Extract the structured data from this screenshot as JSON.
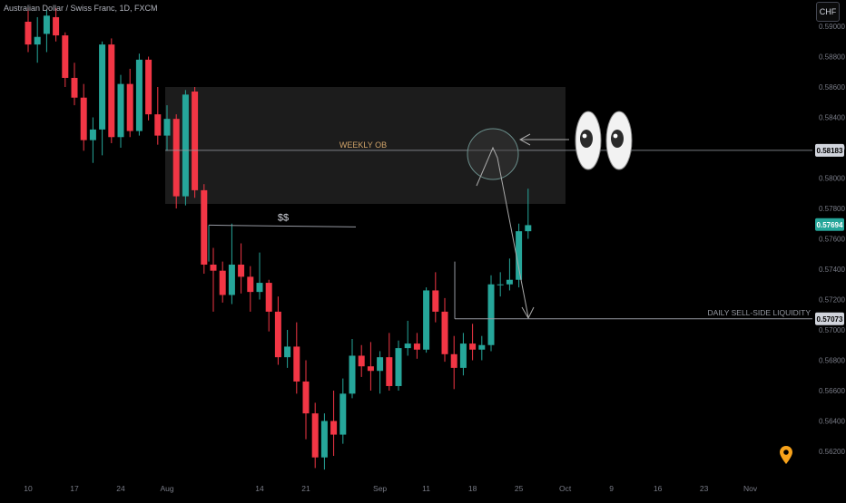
{
  "header": {
    "symbol_title": "Australian Dollar / Swiss Franc, 1D, FXCM",
    "currency": "CHF"
  },
  "colors": {
    "background": "#000000",
    "up_candle": "#26a69a",
    "down_candle": "#f23645",
    "zone_fill": "#1c1c1c",
    "line_gray": "#9598a1",
    "weekly_ob_label": "#d1a46a",
    "price_tag_gray": "#d1d4dc",
    "price_tag_green": "#26a69a"
  },
  "icons": {
    "eyes": "eyes-emoji-icon",
    "pin": "location-pin-icon"
  },
  "chart_data": {
    "type": "candlestick",
    "title": "Australian Dollar / Swiss Franc, 1D, FXCM",
    "y_axis": {
      "range": [
        0.5605,
        0.591
      ],
      "ticks": [
        "0.59000",
        "0.58800",
        "0.58600",
        "0.58400",
        "0.58200",
        "0.58000",
        "0.57800",
        "0.57600",
        "0.57400",
        "0.57200",
        "0.57000",
        "0.56800",
        "0.56600",
        "0.56400",
        "0.56200"
      ],
      "tick_values": [
        0.59,
        0.588,
        0.586,
        0.584,
        0.582,
        0.58,
        0.578,
        0.576,
        0.574,
        0.572,
        0.57,
        0.568,
        0.566,
        0.564,
        0.562
      ]
    },
    "x_axis": {
      "labels": [
        "10",
        "17",
        "24",
        "Aug",
        "14",
        "21",
        "Sep",
        "11",
        "18",
        "25",
        "Oct",
        "9",
        "16",
        "23",
        "Nov"
      ],
      "label_bar_index": [
        0,
        5,
        10,
        15,
        25,
        30,
        38,
        43,
        48,
        53,
        58,
        63,
        68,
        73,
        78
      ]
    },
    "candles": [
      {
        "o": 0.5903,
        "h": 0.5912,
        "l": 0.5883,
        "c": 0.5888
      },
      {
        "o": 0.5888,
        "h": 0.5906,
        "l": 0.5876,
        "c": 0.5893
      },
      {
        "o": 0.5895,
        "h": 0.5911,
        "l": 0.5883,
        "c": 0.5907
      },
      {
        "o": 0.5906,
        "h": 0.5912,
        "l": 0.589,
        "c": 0.5894
      },
      {
        "o": 0.5894,
        "h": 0.5896,
        "l": 0.586,
        "c": 0.5866
      },
      {
        "o": 0.5866,
        "h": 0.5876,
        "l": 0.5848,
        "c": 0.5853
      },
      {
        "o": 0.5853,
        "h": 0.5862,
        "l": 0.5818,
        "c": 0.5825
      },
      {
        "o": 0.5825,
        "h": 0.584,
        "l": 0.581,
        "c": 0.5832
      },
      {
        "o": 0.5832,
        "h": 0.589,
        "l": 0.5815,
        "c": 0.5888
      },
      {
        "o": 0.5888,
        "h": 0.5892,
        "l": 0.5823,
        "c": 0.5827
      },
      {
        "o": 0.5827,
        "h": 0.5868,
        "l": 0.582,
        "c": 0.5862
      },
      {
        "o": 0.5862,
        "h": 0.5872,
        "l": 0.5827,
        "c": 0.5831
      },
      {
        "o": 0.5831,
        "h": 0.5882,
        "l": 0.5828,
        "c": 0.5878
      },
      {
        "o": 0.5878,
        "h": 0.588,
        "l": 0.5838,
        "c": 0.5842
      },
      {
        "o": 0.5842,
        "h": 0.586,
        "l": 0.5822,
        "c": 0.5828
      },
      {
        "o": 0.5828,
        "h": 0.5848,
        "l": 0.5818,
        "c": 0.5839
      },
      {
        "o": 0.5839,
        "h": 0.5842,
        "l": 0.578,
        "c": 0.5788
      },
      {
        "o": 0.5788,
        "h": 0.5858,
        "l": 0.5782,
        "c": 0.5855
      },
      {
        "o": 0.5857,
        "h": 0.586,
        "l": 0.5787,
        "c": 0.5792
      },
      {
        "o": 0.5792,
        "h": 0.5796,
        "l": 0.5737,
        "c": 0.5743
      },
      {
        "o": 0.5743,
        "h": 0.5754,
        "l": 0.5712,
        "c": 0.5739
      },
      {
        "o": 0.5739,
        "h": 0.5745,
        "l": 0.5718,
        "c": 0.5723
      },
      {
        "o": 0.5723,
        "h": 0.577,
        "l": 0.5717,
        "c": 0.5743
      },
      {
        "o": 0.5743,
        "h": 0.5757,
        "l": 0.5724,
        "c": 0.5735
      },
      {
        "o": 0.5735,
        "h": 0.5742,
        "l": 0.5712,
        "c": 0.5725
      },
      {
        "o": 0.5725,
        "h": 0.5751,
        "l": 0.572,
        "c": 0.5731
      },
      {
        "o": 0.5731,
        "h": 0.5733,
        "l": 0.5699,
        "c": 0.5712
      },
      {
        "o": 0.5712,
        "h": 0.5722,
        "l": 0.5677,
        "c": 0.5682
      },
      {
        "o": 0.5682,
        "h": 0.57,
        "l": 0.5675,
        "c": 0.5689
      },
      {
        "o": 0.5689,
        "h": 0.5705,
        "l": 0.5658,
        "c": 0.5666
      },
      {
        "o": 0.5666,
        "h": 0.568,
        "l": 0.5628,
        "c": 0.5645
      },
      {
        "o": 0.5645,
        "h": 0.5652,
        "l": 0.5609,
        "c": 0.5616
      },
      {
        "o": 0.5616,
        "h": 0.5645,
        "l": 0.5608,
        "c": 0.564
      },
      {
        "o": 0.564,
        "h": 0.566,
        "l": 0.5617,
        "c": 0.5631
      },
      {
        "o": 0.5631,
        "h": 0.5668,
        "l": 0.5625,
        "c": 0.5658
      },
      {
        "o": 0.5658,
        "h": 0.5694,
        "l": 0.5655,
        "c": 0.5683
      },
      {
        "o": 0.5683,
        "h": 0.569,
        "l": 0.5669,
        "c": 0.5676
      },
      {
        "o": 0.5676,
        "h": 0.5692,
        "l": 0.566,
        "c": 0.5673
      },
      {
        "o": 0.5673,
        "h": 0.5686,
        "l": 0.5658,
        "c": 0.5682
      }
    ],
    "candles_b": [
      {
        "o": 0.5682,
        "h": 0.5698,
        "l": 0.566,
        "c": 0.5663
      },
      {
        "o": 0.5663,
        "h": 0.5693,
        "l": 0.566,
        "c": 0.5688
      },
      {
        "o": 0.5688,
        "h": 0.5706,
        "l": 0.5683,
        "c": 0.5691
      },
      {
        "o": 0.5691,
        "h": 0.5698,
        "l": 0.5681,
        "c": 0.5687
      },
      {
        "o": 0.5687,
        "h": 0.5728,
        "l": 0.5685,
        "c": 0.5726
      },
      {
        "o": 0.5726,
        "h": 0.5738,
        "l": 0.5705,
        "c": 0.5712
      },
      {
        "o": 0.5712,
        "h": 0.5721,
        "l": 0.5679,
        "c": 0.5684
      },
      {
        "o": 0.5684,
        "h": 0.5696,
        "l": 0.5661,
        "c": 0.5675
      },
      {
        "o": 0.5675,
        "h": 0.5698,
        "l": 0.567,
        "c": 0.5691
      },
      {
        "o": 0.5691,
        "h": 0.5704,
        "l": 0.568,
        "c": 0.5687
      },
      {
        "o": 0.5687,
        "h": 0.5696,
        "l": 0.568,
        "c": 0.569
      },
      {
        "o": 0.569,
        "h": 0.5736,
        "l": 0.5686,
        "c": 0.573
      },
      {
        "o": 0.573,
        "h": 0.5738,
        "l": 0.5722,
        "c": 0.573
      },
      {
        "o": 0.573,
        "h": 0.5747,
        "l": 0.5726,
        "c": 0.5733
      },
      {
        "o": 0.5733,
        "h": 0.577,
        "l": 0.5728,
        "c": 0.5765
      },
      {
        "o": 0.5765,
        "h": 0.5793,
        "l": 0.576,
        "c": 0.5769
      }
    ],
    "annotations": {
      "weekly_ob_label": "WEEKLY OB",
      "weekly_ob_zone": [
        0.5783,
        0.586
      ],
      "weekly_ob_level": 0.58183,
      "dollar_label": "$$",
      "dollar_level": 0.5769,
      "sell_side_label": "DAILY SELL-SIDE LIQUIDITY",
      "sell_side_level": 0.57073,
      "last_price": 0.57694
    },
    "price_tags": [
      "0.58183",
      "0.57694",
      "0.57073"
    ]
  }
}
